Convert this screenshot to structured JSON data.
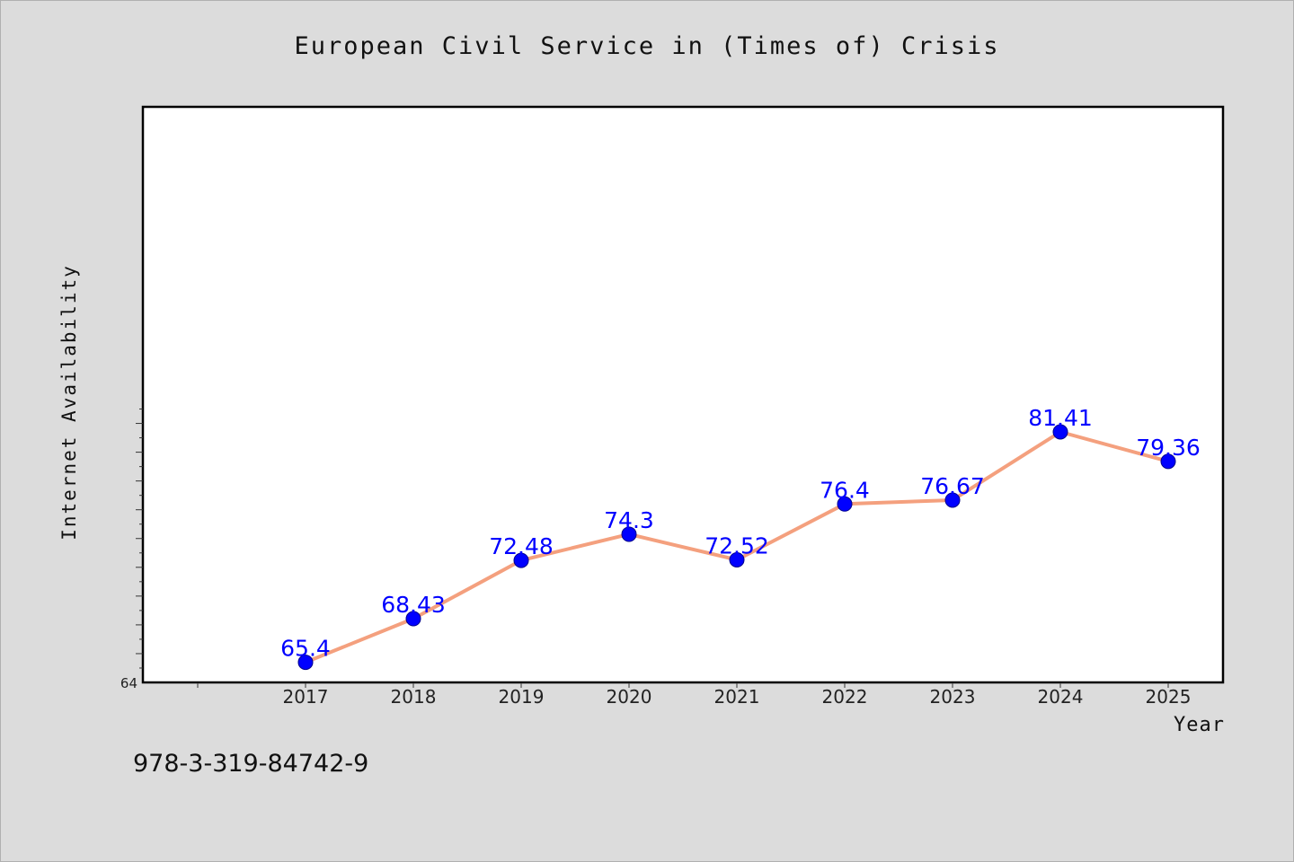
{
  "chart_data": {
    "type": "line",
    "title": "European Civil Service in (Times of) Crisis",
    "xlabel": "Year",
    "ylabel": "Internet Availability",
    "categories": [
      "2017",
      "2018",
      "2019",
      "2020",
      "2021",
      "2022",
      "2023",
      "2024",
      "2025"
    ],
    "series": [
      {
        "values": [
          65.4,
          68.43,
          72.48,
          74.3,
          72.52,
          76.4,
          76.67,
          81.41,
          79.36
        ]
      }
    ],
    "data_labels": [
      "65.4",
      "68.43",
      "72.48",
      "74.3",
      "72.52",
      "76.4",
      "76.67",
      "81.41",
      "79.36"
    ],
    "ylim": [
      64,
      84
    ],
    "y_tick_labels": [
      "64"
    ],
    "grid": false,
    "legend": "none",
    "colors": {
      "line": "#f4a07e",
      "marker": "#0000ff",
      "label": "#0000ff",
      "plot_background": "#ffffff",
      "figure_background": "#dcdcdc"
    }
  },
  "footnote": "978-3-319-84742-9"
}
